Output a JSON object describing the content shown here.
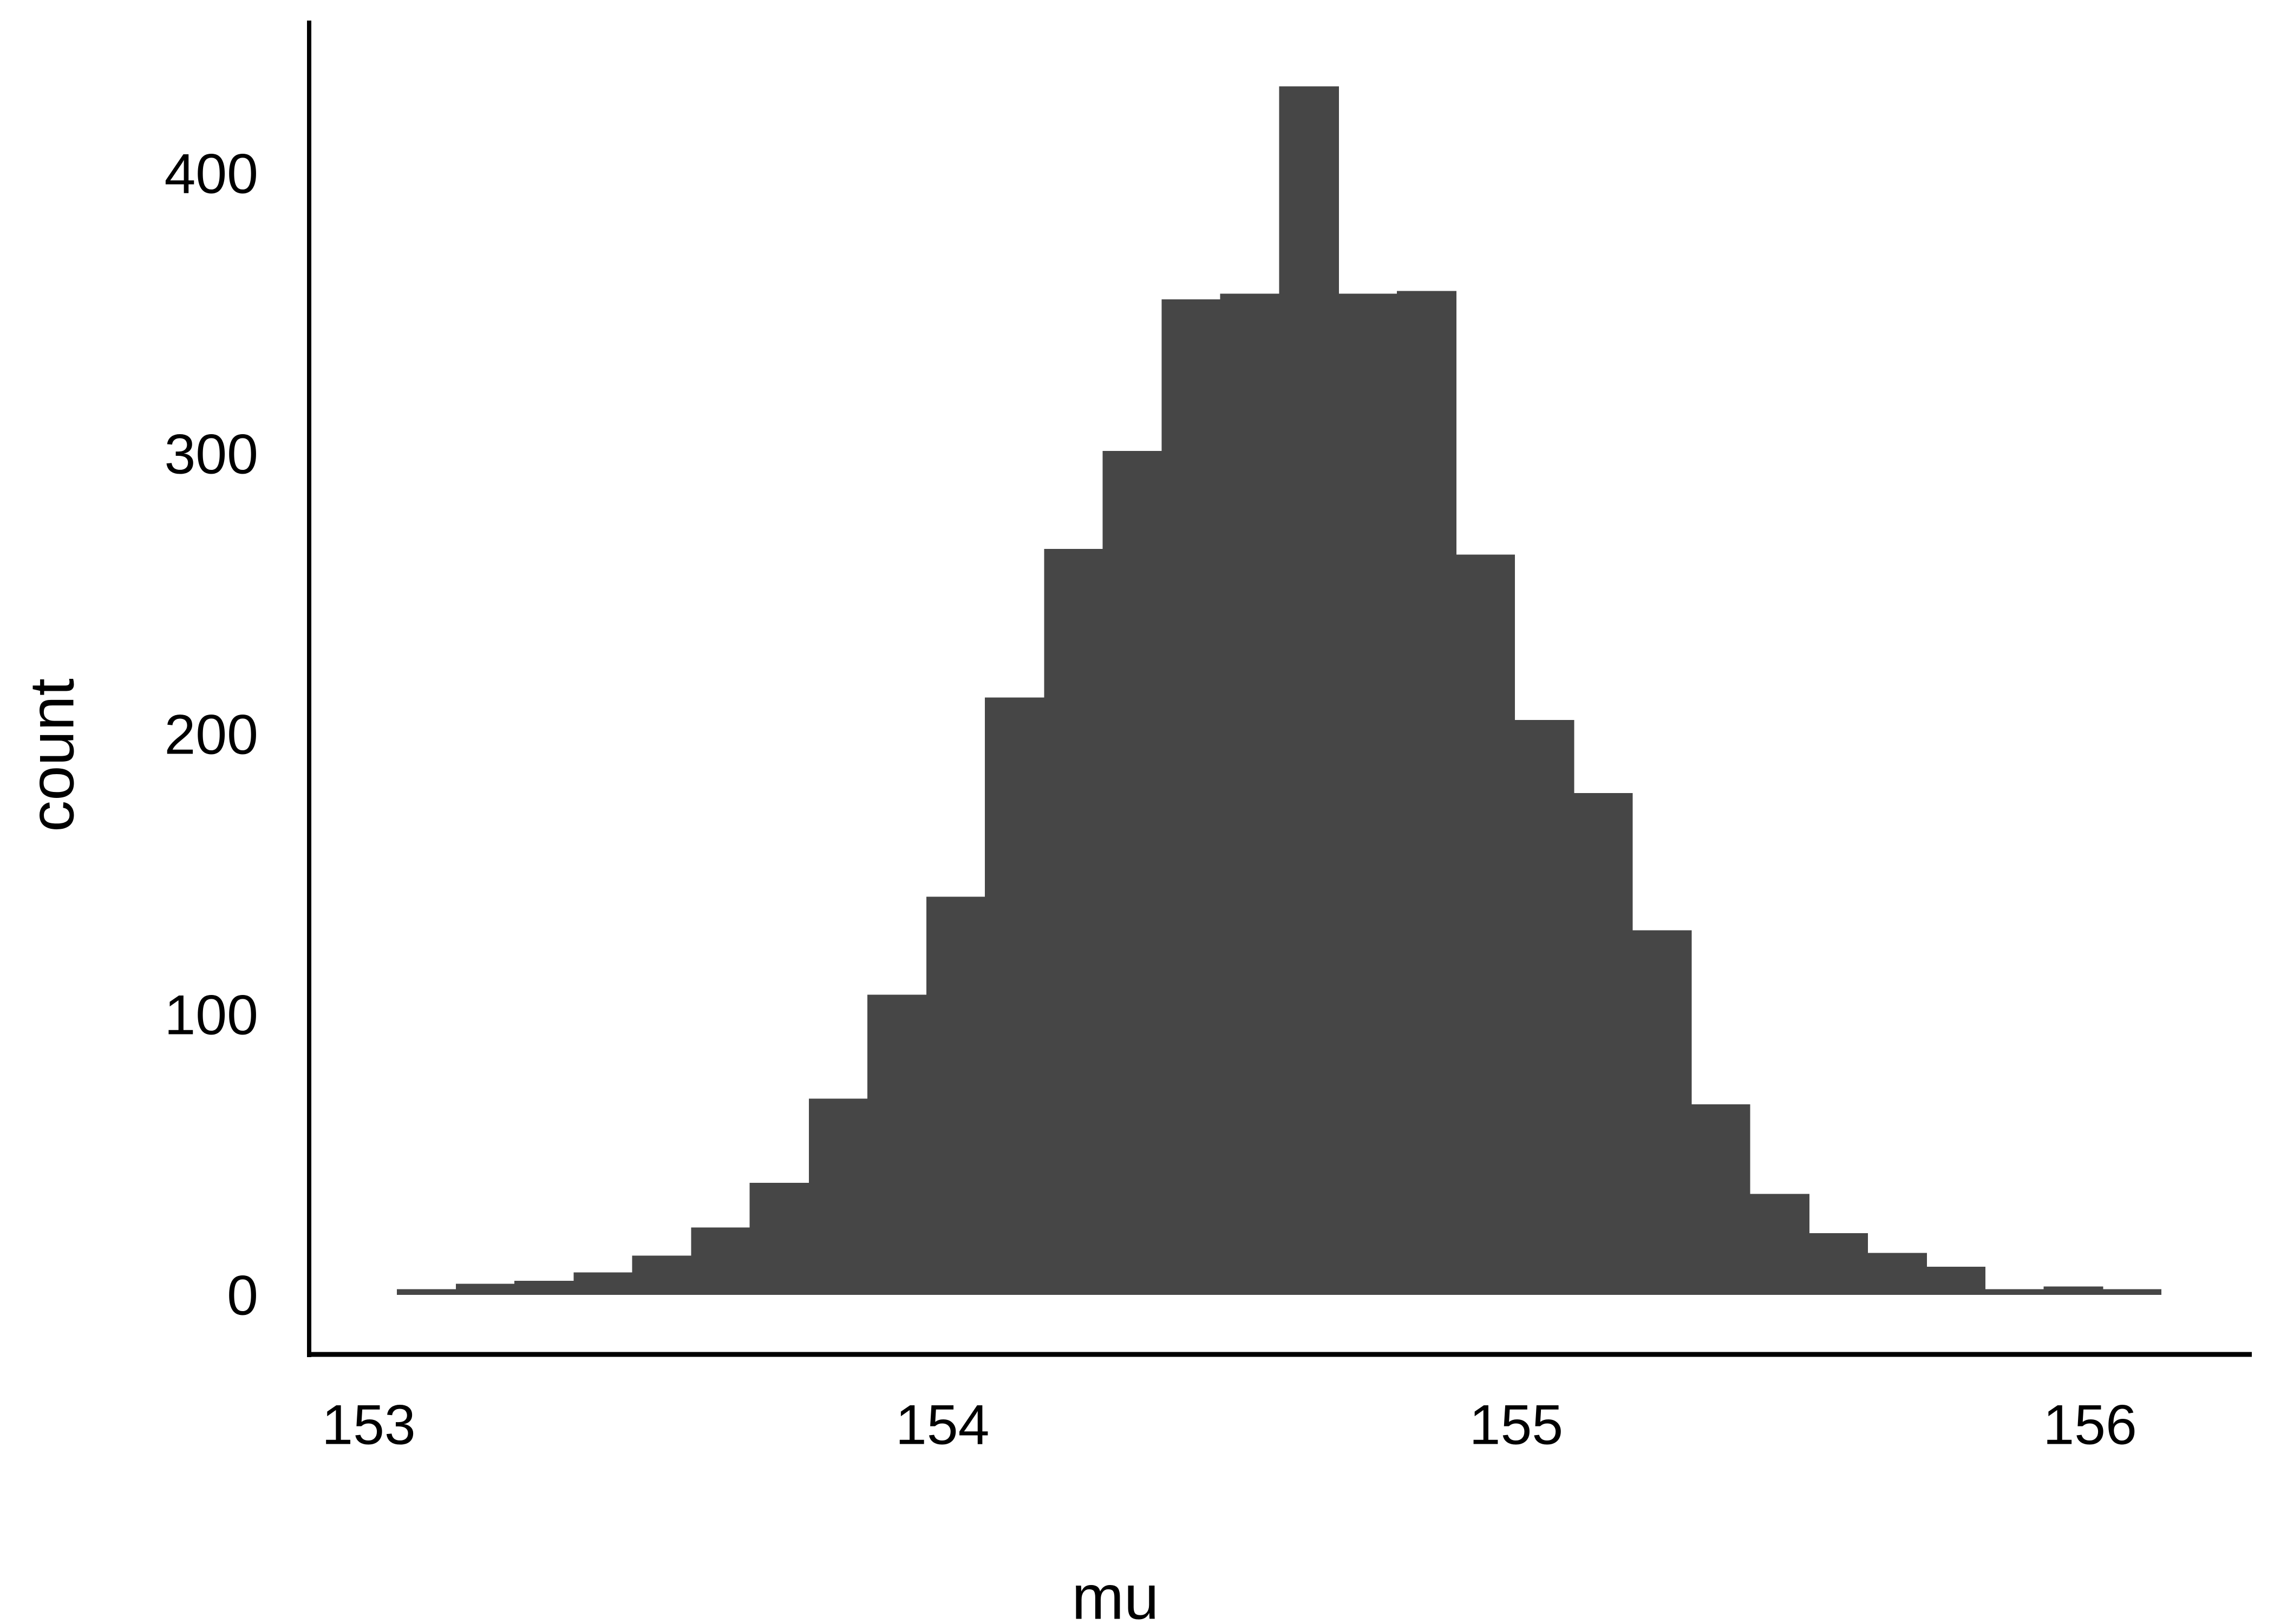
{
  "chart_data": {
    "type": "bar",
    "subtype": "histogram",
    "title": "",
    "xlabel": "mu",
    "ylabel": "count",
    "x_ticks": [
      153,
      154,
      155,
      156
    ],
    "y_ticks": [
      0,
      100,
      200,
      300,
      400
    ],
    "xlim": [
      152.892,
      156.282
    ],
    "ylim": [
      -21,
      454
    ],
    "grid": false,
    "legend": "none",
    "bins": {
      "start": 153.049,
      "width": 0.1025,
      "count": 30
    },
    "bin_left_edges": [
      153.049,
      153.152,
      153.254,
      153.357,
      153.459,
      153.562,
      153.664,
      153.767,
      153.869,
      153.972,
      154.074,
      154.177,
      154.279,
      154.382,
      154.484,
      154.587,
      154.689,
      154.792,
      154.894,
      154.997,
      155.099,
      155.202,
      155.304,
      155.407,
      155.509,
      155.612,
      155.714,
      155.817,
      155.919,
      156.022
    ],
    "values": [
      2,
      4,
      5,
      8,
      14,
      24,
      40,
      70,
      107,
      142,
      213,
      266,
      301,
      355,
      357,
      431,
      357,
      358,
      264,
      205,
      179,
      130,
      68,
      36,
      22,
      15,
      10,
      2,
      3,
      2
    ],
    "colors": {
      "bar_fill": "#464646",
      "axis_line": "#000000",
      "tick_text": "#000000",
      "title_text": "#000000",
      "background": "#ffffff"
    }
  }
}
